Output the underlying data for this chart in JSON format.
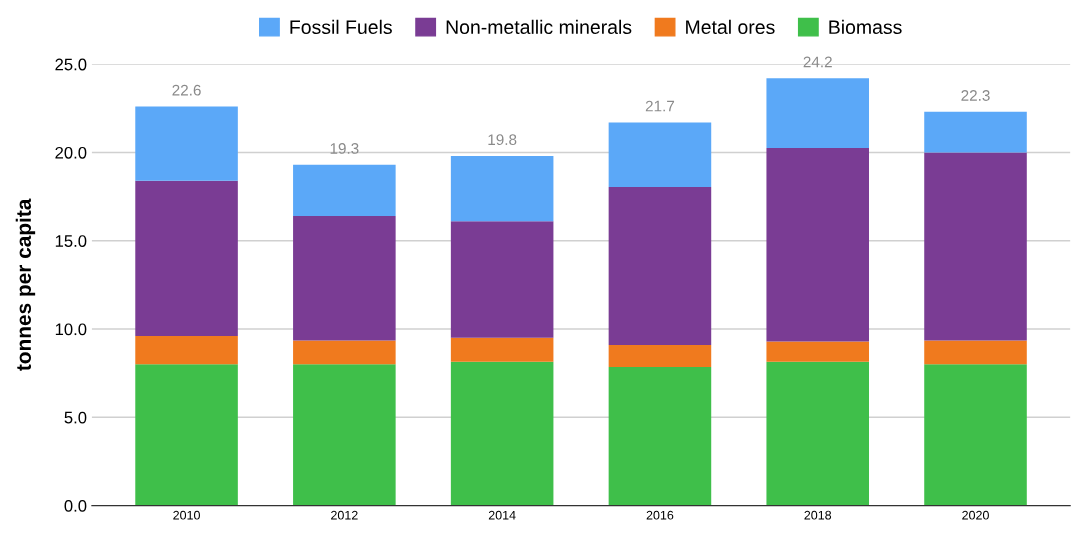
{
  "chart_data": {
    "type": "bar",
    "stacked": true,
    "ylabel": "tonnes per capita",
    "categories": [
      "2010",
      "2012",
      "2014",
      "2016",
      "2018",
      "2020"
    ],
    "series": [
      {
        "name": "Biomass",
        "color": "#3fbf4a",
        "values": [
          8.0,
          8.0,
          8.15,
          7.85,
          8.15,
          8.0
        ]
      },
      {
        "name": "Metal ores",
        "color": "#f07a1e",
        "values": [
          1.6,
          1.35,
          1.35,
          1.25,
          1.15,
          1.35
        ]
      },
      {
        "name": "Non-metallic minerals",
        "color": "#7a3c94",
        "values": [
          8.8,
          7.05,
          6.6,
          8.95,
          10.95,
          10.65
        ]
      },
      {
        "name": "Fossil Fuels",
        "color": "#5ba8f8",
        "values": [
          4.2,
          2.9,
          3.7,
          3.65,
          3.95,
          2.3
        ]
      }
    ],
    "totals": [
      "22.6",
      "19.3",
      "19.8",
      "21.7",
      "24.2",
      "22.3"
    ],
    "ylim": [
      0,
      25
    ],
    "yticks": [
      {
        "value": 0,
        "label": "0.0"
      },
      {
        "value": 5,
        "label": "5.0"
      },
      {
        "value": 10,
        "label": "10.0"
      },
      {
        "value": 15,
        "label": "15.0"
      },
      {
        "value": 20,
        "label": "20.0"
      },
      {
        "value": 25,
        "label": "25.0"
      }
    ],
    "grid": "y",
    "legend": "top"
  }
}
